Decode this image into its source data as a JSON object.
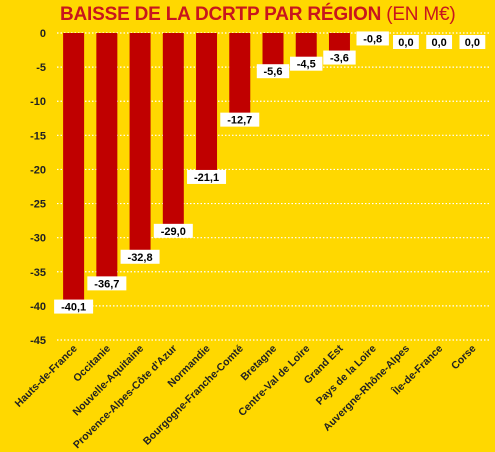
{
  "colors": {
    "background": "#FFD800",
    "bar": "#C00000",
    "title": "#C8161D",
    "grid": "#FFFFFF",
    "label_bg": "#FFFFFF"
  },
  "chart_data": {
    "type": "bar",
    "title": "BAISSE DE LA DCRTP PAR RÉGION",
    "title_unit": "(EN M€)",
    "xlabel": "",
    "ylabel": "",
    "ylim": [
      -45,
      0
    ],
    "yticks": [
      0,
      -5,
      -10,
      -15,
      -20,
      -25,
      -30,
      -35,
      -40,
      -45
    ],
    "grid": true,
    "legend": "none",
    "categories": [
      "Hauts-de-France",
      "Occitanie",
      "Nouvelle-Aquitaine",
      "Provence-Alpes-Côte d'Azur",
      "Normandie",
      "Bourgogne-Franche-Comté",
      "Bretagne",
      "Centre-Val de Loire",
      "Grand Est",
      "Pays de la Loire",
      "Auvergne-Rhône-Alpes",
      "Île-de-France",
      "Corse"
    ],
    "values": [
      -40.1,
      -36.7,
      -32.8,
      -29.0,
      -21.1,
      -12.7,
      -5.6,
      -4.5,
      -3.6,
      -0.8,
      0.0,
      0.0,
      0.0
    ],
    "data_labels": [
      "-40,1",
      "-36,7",
      "-32,8",
      "-29,0",
      "-21,1",
      "-12,7",
      "-5,6",
      "-4,5",
      "-3,6",
      "-0,8",
      "0,0",
      "0,0",
      "0,0"
    ]
  }
}
